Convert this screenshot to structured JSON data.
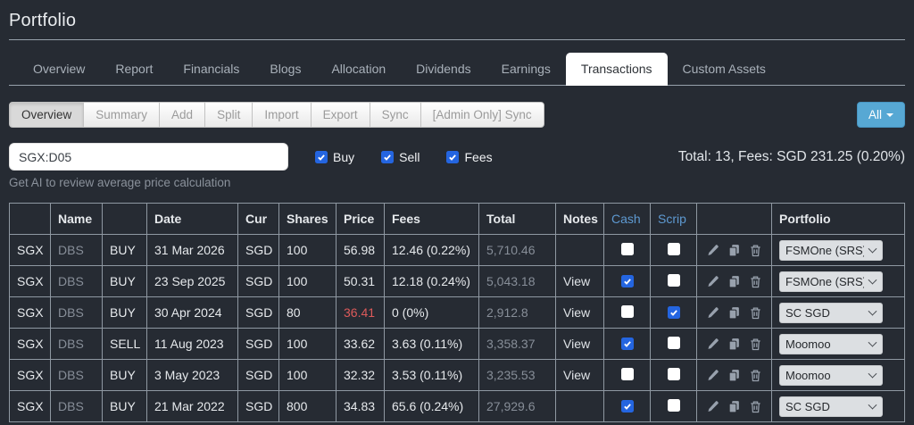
{
  "title": "Portfolio",
  "tabs": {
    "items": [
      {
        "label": "Overview",
        "active": false
      },
      {
        "label": "Report",
        "active": false
      },
      {
        "label": "Financials",
        "active": false
      },
      {
        "label": "Blogs",
        "active": false
      },
      {
        "label": "Allocation",
        "active": false
      },
      {
        "label": "Dividends",
        "active": false
      },
      {
        "label": "Earnings",
        "active": false
      },
      {
        "label": "Transactions",
        "active": true
      },
      {
        "label": "Custom Assets",
        "active": false
      }
    ]
  },
  "subnav": {
    "buttons": [
      {
        "label": "Overview",
        "active": true
      },
      {
        "label": "Summary",
        "active": false
      },
      {
        "label": "Add",
        "active": false
      },
      {
        "label": "Split",
        "active": false
      },
      {
        "label": "Import",
        "active": false
      },
      {
        "label": "Export",
        "active": false
      },
      {
        "label": "Sync",
        "active": false
      },
      {
        "label": "[Admin Only] Sync",
        "active": false
      }
    ],
    "filter_dropdown_label": "All"
  },
  "filters": {
    "search_value": "SGX:D05",
    "checkboxes": [
      {
        "label": "Buy",
        "checked": true
      },
      {
        "label": "Sell",
        "checked": true
      },
      {
        "label": "Fees",
        "checked": true
      }
    ],
    "summary_text": "Total: 13, Fees: SGD 231.25 (0.20%)",
    "ai_hint": "Get AI to review average price calculation"
  },
  "table": {
    "headers": [
      {
        "label": "",
        "accent": false
      },
      {
        "label": "Name",
        "accent": false
      },
      {
        "label": "",
        "accent": false
      },
      {
        "label": "Date",
        "accent": false
      },
      {
        "label": "Cur",
        "accent": false
      },
      {
        "label": "Shares",
        "accent": false
      },
      {
        "label": "Price",
        "accent": false
      },
      {
        "label": "Fees",
        "accent": false
      },
      {
        "label": "Total",
        "accent": false
      },
      {
        "label": "Notes",
        "accent": false
      },
      {
        "label": "Cash",
        "accent": true
      },
      {
        "label": "Scrip",
        "accent": true
      },
      {
        "label": "",
        "accent": false
      },
      {
        "label": "Portfolio",
        "accent": false
      }
    ],
    "rows": [
      {
        "exchange": "SGX",
        "name": "DBS",
        "side": "BUY",
        "date": "31 Mar 2026",
        "cur": "SGD",
        "shares": "100",
        "price": "56.98",
        "price_alert": false,
        "fees": "12.46 (0.22%)",
        "total": "5,710.46",
        "notes": "",
        "cash": false,
        "scrip": false,
        "portfolio": "FSMOne (SRS)"
      },
      {
        "exchange": "SGX",
        "name": "DBS",
        "side": "BUY",
        "date": "23 Sep 2025",
        "cur": "SGD",
        "shares": "100",
        "price": "50.31",
        "price_alert": false,
        "fees": "12.18 (0.24%)",
        "total": "5,043.18",
        "notes": "View",
        "cash": true,
        "scrip": false,
        "portfolio": "FSMOne (SRS)"
      },
      {
        "exchange": "SGX",
        "name": "DBS",
        "side": "BUY",
        "date": "30 Apr 2024",
        "cur": "SGD",
        "shares": "80",
        "price": "36.41",
        "price_alert": true,
        "fees": "0 (0%)",
        "total": "2,912.8",
        "notes": "View",
        "cash": false,
        "scrip": true,
        "portfolio": "SC SGD"
      },
      {
        "exchange": "SGX",
        "name": "DBS",
        "side": "SELL",
        "date": "11 Aug 2023",
        "cur": "SGD",
        "shares": "100",
        "price": "33.62",
        "price_alert": false,
        "fees": "3.63 (0.11%)",
        "total": "3,358.37",
        "notes": "View",
        "cash": true,
        "scrip": false,
        "portfolio": "Moomoo"
      },
      {
        "exchange": "SGX",
        "name": "DBS",
        "side": "BUY",
        "date": "3 May 2023",
        "cur": "SGD",
        "shares": "100",
        "price": "32.32",
        "price_alert": false,
        "fees": "3.53 (0.11%)",
        "total": "3,235.53",
        "notes": "View",
        "cash": false,
        "scrip": false,
        "portfolio": "Moomoo"
      },
      {
        "exchange": "SGX",
        "name": "DBS",
        "side": "BUY",
        "date": "21 Mar 2022",
        "cur": "SGD",
        "shares": "800",
        "price": "34.83",
        "price_alert": false,
        "fees": "65.6 (0.24%)",
        "total": "27,929.6",
        "notes": "",
        "cash": true,
        "scrip": false,
        "portfolio": "SC SGD"
      }
    ]
  },
  "colors": {
    "checkbox_blue": "#2465e0",
    "link_blue": "#5e9ad2",
    "alert_red": "#dc5a5a",
    "all_button_bg": "#57a8d4"
  }
}
